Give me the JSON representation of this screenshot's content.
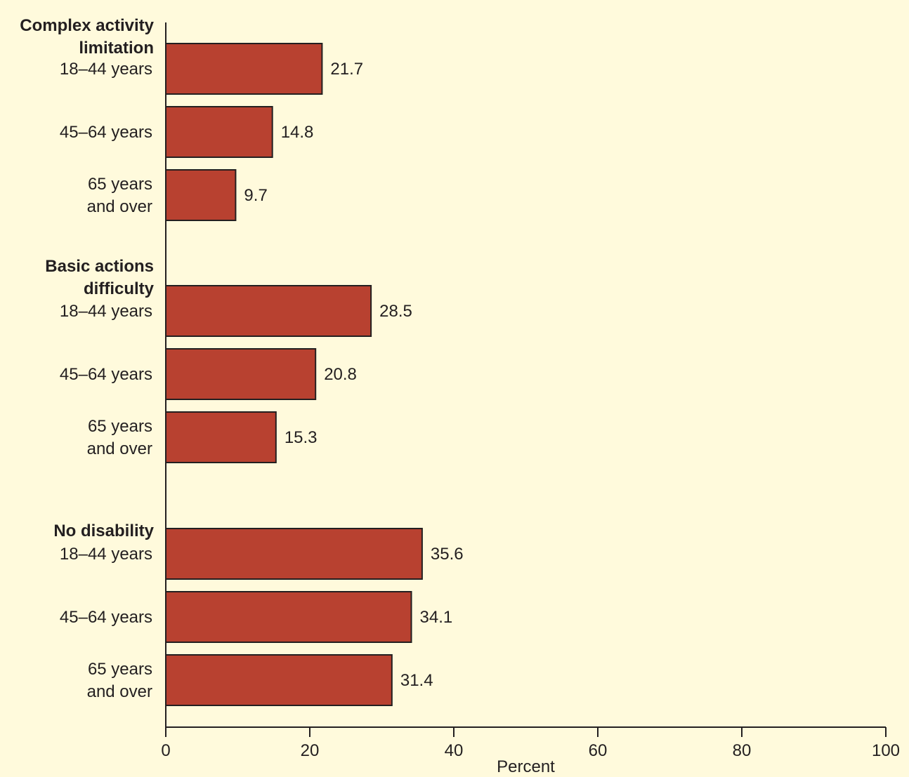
{
  "chart_data": {
    "type": "bar",
    "orientation": "horizontal",
    "xlabel": "Percent",
    "xlim": [
      0,
      100
    ],
    "xticks": [
      0,
      20,
      40,
      60,
      80,
      100
    ],
    "grid": false,
    "colors": {
      "bar": "#b84130",
      "stroke": "#231f20",
      "background": "#fffadc"
    },
    "groups": [
      {
        "name": [
          "Complex activity",
          "limitation"
        ],
        "bars": [
          {
            "label": [
              "18–44 years"
            ],
            "value": 21.7,
            "value_label": "21.7"
          },
          {
            "label": [
              "45–64 years"
            ],
            "value": 14.8,
            "value_label": "14.8"
          },
          {
            "label": [
              "65 years",
              "and over"
            ],
            "value": 9.7,
            "value_label": "9.7"
          }
        ]
      },
      {
        "name": [
          "Basic actions",
          "difficulty"
        ],
        "bars": [
          {
            "label": [
              "18–44 years"
            ],
            "value": 28.5,
            "value_label": "28.5"
          },
          {
            "label": [
              "45–64 years"
            ],
            "value": 20.8,
            "value_label": "20.8"
          },
          {
            "label": [
              "65 years",
              "and over"
            ],
            "value": 15.3,
            "value_label": "15.3"
          }
        ]
      },
      {
        "name": [
          "No disability"
        ],
        "bars": [
          {
            "label": [
              "18–44 years"
            ],
            "value": 35.6,
            "value_label": "35.6"
          },
          {
            "label": [
              "45–64 years"
            ],
            "value": 34.1,
            "value_label": "34.1"
          },
          {
            "label": [
              "65 years",
              "and over"
            ],
            "value": 31.4,
            "value_label": "31.4"
          }
        ]
      }
    ]
  }
}
